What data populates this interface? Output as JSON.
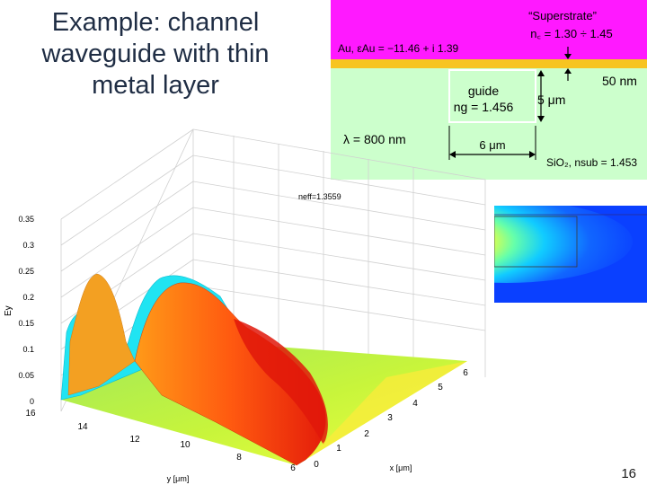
{
  "slide": {
    "title_line1": "Example: channel",
    "title_line2": "waveguide with thin",
    "title_line3": "metal layer",
    "page_number": "16"
  },
  "diagram": {
    "superstrate_label": "“Superstrate”",
    "superstrate_index": "n꜀ = 1.30 ÷ 1.45",
    "metal_label": "Au, εAu = −11.46 + i 1.39",
    "metal_thickness": "50 nm",
    "guide_label": "guide",
    "guide_index": "ng = 1.456",
    "guide_height": "5 μm",
    "guide_width": "6 μm",
    "wavelength": "λ = 800 nm",
    "substrate_label": "SiO₂, nsub = 1.453",
    "colors": {
      "superstrate": "#ff19ff",
      "metal": "#f7c421",
      "substrate": "#ccffcc",
      "guide": "#ccffcc"
    }
  },
  "plot": {
    "neff_label": "neff=1.3559",
    "z_axis_label": "Ey",
    "y_axis_label": "y [μm]",
    "x_axis_label": "x [μm]",
    "z_ticks": [
      "0.35",
      "0.3",
      "0.25",
      "0.2",
      "0.15",
      "0.1",
      "0.05",
      "0"
    ],
    "y_ticks": [
      "16",
      "14",
      "12",
      "10",
      "8",
      "6"
    ],
    "x_ticks": [
      "0",
      "1",
      "2",
      "3",
      "4",
      "5",
      "6"
    ]
  }
}
